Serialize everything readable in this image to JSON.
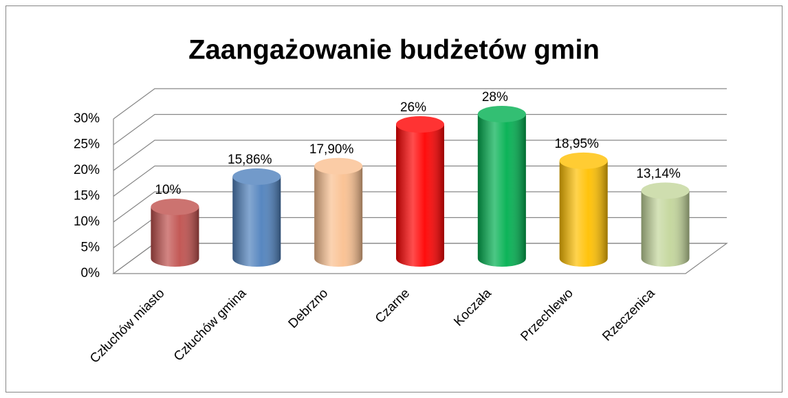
{
  "chart_data": {
    "type": "bar3d",
    "title": "Zaangażowanie budżetów gmin",
    "categories": [
      "Człuchów miasto",
      "Człuchów gmina",
      "Debrzno",
      "Czarne",
      "Koczała",
      "Przechlewo",
      "Rzeczenica"
    ],
    "values": [
      10,
      15.86,
      17.9,
      26,
      28,
      18.95,
      13.14
    ],
    "value_labels": [
      "10%",
      "15,86%",
      "17,90%",
      "26%",
      "28%",
      "18,95%",
      "13,14%"
    ],
    "colors": [
      "#c0504d",
      "#4f81bd",
      "#fac090",
      "#ff0000",
      "#00b050",
      "#ffc000",
      "#c3d69b"
    ],
    "ylim": [
      0,
      30
    ],
    "yticks": [
      {
        "value": 0,
        "label": "0%"
      },
      {
        "value": 5,
        "label": "5%"
      },
      {
        "value": 10,
        "label": "10%"
      },
      {
        "value": 15,
        "label": "15%"
      },
      {
        "value": 20,
        "label": "20%"
      },
      {
        "value": 25,
        "label": "25%"
      },
      {
        "value": 30,
        "label": "30%"
      }
    ],
    "grid": true
  }
}
